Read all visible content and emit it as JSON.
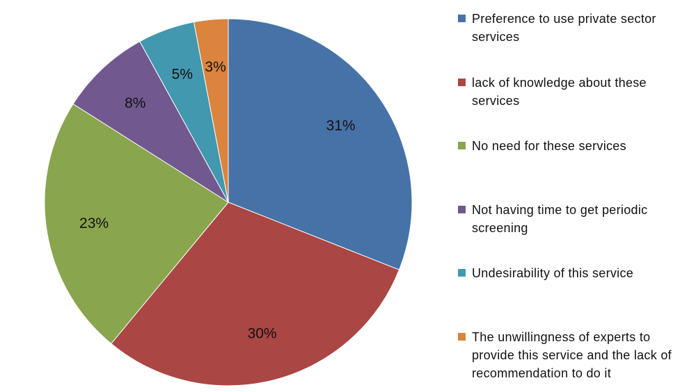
{
  "chart_data": {
    "type": "pie",
    "categories": [
      "Preference to use private sector services",
      "lack of knowledge about these services",
      "No need for these services",
      "Not having time to get periodic screening",
      "Undesirability of this service",
      "The unwillingness of experts to provide this service and the lack of recommendation to do it"
    ],
    "values": [
      31,
      30,
      23,
      8,
      5,
      3
    ],
    "labels": [
      "31%",
      "30%",
      "23%",
      "8%",
      "5%",
      "3%"
    ],
    "colors": [
      "#4672A8",
      "#AA4643",
      "#89A54E",
      "#71588F",
      "#4198AF",
      "#DB843D"
    ],
    "start": "12 o'clock",
    "direction": "clockwise",
    "legend_position": "right"
  }
}
